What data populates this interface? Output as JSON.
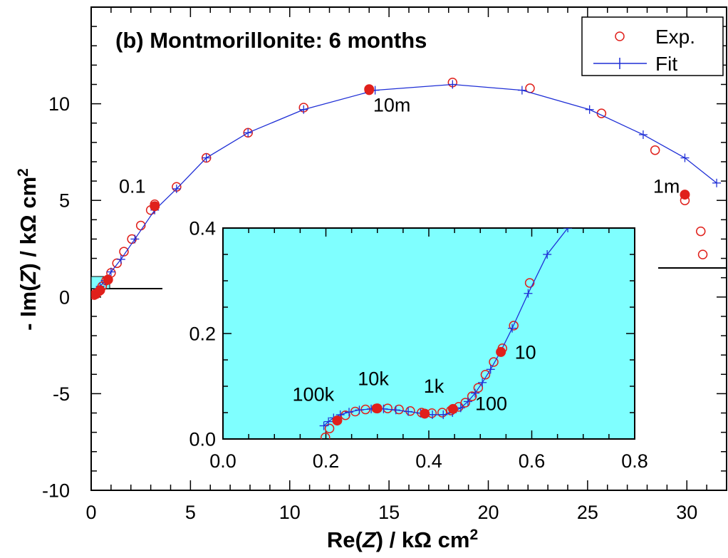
{
  "chart_data": [
    {
      "id": "main",
      "type": "scatter",
      "title": "(b) Montmorillonite: 6 months",
      "xlabel_prefix": "Re(",
      "xlabel_var": "Z",
      "xlabel_suffix": ") / kΩ cm",
      "xlabel_sup": "2",
      "ylabel_prefix": "- Im(",
      "ylabel_var": "Z",
      "ylabel_suffix": ") / kΩ cm",
      "ylabel_sup": "2",
      "xlim": [
        0,
        32
      ],
      "ylim": [
        -10,
        15
      ],
      "xticks": [
        "0",
        "5",
        "10",
        "15",
        "20",
        "25",
        "30"
      ],
      "xtick_values": [
        0,
        5,
        10,
        15,
        20,
        25,
        30
      ],
      "ytick_labels": [
        "-10",
        "-5",
        "0",
        "5",
        "10"
      ],
      "ytick_values": [
        -10,
        -5,
        0,
        5,
        10
      ],
      "legend": {
        "position": "top-right",
        "entries": [
          "Exp.",
          "Fit"
        ]
      },
      "series": [
        {
          "name": "Exp.",
          "marker": "open-circle",
          "color": "#e0201b",
          "x": [
            0.15,
            0.25,
            0.4,
            0.55,
            0.75,
            1.0,
            1.3,
            1.65,
            2.05,
            2.5,
            3.0,
            3.2,
            4.3,
            5.8,
            7.9,
            10.7,
            14.0,
            18.2,
            22.1,
            25.7,
            28.4,
            29.9,
            30.7,
            30.8
          ],
          "y": [
            0.1,
            0.15,
            0.3,
            0.55,
            0.85,
            1.25,
            1.75,
            2.35,
            3.0,
            3.7,
            4.5,
            4.8,
            5.7,
            7.2,
            8.5,
            9.8,
            10.7,
            11.1,
            10.8,
            9.5,
            7.6,
            5.0,
            3.4,
            2.2
          ]
        },
        {
          "name": "Fit",
          "marker": "plus",
          "color": "#1f2fd6",
          "x": [
            0.15,
            0.3,
            0.45,
            0.7,
            1.0,
            1.5,
            2.2,
            3.2,
            4.3,
            5.8,
            7.9,
            10.7,
            14.3,
            18.2,
            21.7,
            25.1,
            27.8,
            29.9,
            31.5
          ],
          "y": [
            0.2,
            0.35,
            0.55,
            0.85,
            1.3,
            1.95,
            3.0,
            4.5,
            5.6,
            7.2,
            8.5,
            9.7,
            10.7,
            11.0,
            10.7,
            9.7,
            8.4,
            7.2,
            5.9
          ]
        },
        {
          "name": "",
          "marker": "filled-circle",
          "color": "#e0201b",
          "x": [
            0.2,
            0.45,
            0.85,
            3.2,
            14.0,
            29.9
          ],
          "y": [
            0.15,
            0.35,
            0.9,
            4.7,
            10.75,
            5.3
          ]
        }
      ],
      "annotations": [
        {
          "text": "0.1",
          "x": 1.4,
          "y": 5.4
        },
        {
          "text": "10m",
          "x": 14.2,
          "y": 9.6
        },
        {
          "text": "1m",
          "x": 28.3,
          "y": 5.4
        }
      ]
    },
    {
      "id": "inset",
      "type": "scatter",
      "background": "#7fffff",
      "xlim": [
        0,
        0.8
      ],
      "ylim": [
        0,
        0.4
      ],
      "xticks": [
        "0.0",
        "0.2",
        "0.4",
        "0.6",
        "0.8"
      ],
      "xtick_values": [
        0,
        0.2,
        0.4,
        0.6,
        0.8
      ],
      "ytick_labels": [
        "0.0",
        "0.2",
        "0.4"
      ],
      "ytick_values": [
        0,
        0.2,
        0.4
      ],
      "series": [
        {
          "name": "Exp.",
          "marker": "open-circle",
          "color": "#e0201b",
          "x": [
            0.199,
            0.207,
            0.222,
            0.238,
            0.257,
            0.277,
            0.298,
            0.32,
            0.342,
            0.364,
            0.386,
            0.406,
            0.426,
            0.443,
            0.458,
            0.471,
            0.484,
            0.496,
            0.51,
            0.526,
            0.543,
            0.565,
            0.596
          ],
          "y": [
            0.003,
            0.02,
            0.035,
            0.045,
            0.052,
            0.056,
            0.058,
            0.058,
            0.056,
            0.053,
            0.05,
            0.049,
            0.05,
            0.054,
            0.061,
            0.069,
            0.081,
            0.097,
            0.122,
            0.146,
            0.172,
            0.215,
            0.296
          ]
        },
        {
          "name": "Fit",
          "marker": "plus",
          "color": "#1f2fd6",
          "x": [
            0.196,
            0.205,
            0.215,
            0.228,
            0.245,
            0.265,
            0.288,
            0.312,
            0.336,
            0.36,
            0.384,
            0.407,
            0.428,
            0.446,
            0.462,
            0.476,
            0.49,
            0.504,
            0.52,
            0.539,
            0.562,
            0.593,
            0.63,
            0.67
          ],
          "y": [
            0.025,
            0.033,
            0.04,
            0.046,
            0.051,
            0.055,
            0.057,
            0.057,
            0.055,
            0.052,
            0.049,
            0.046,
            0.046,
            0.05,
            0.059,
            0.071,
            0.087,
            0.107,
            0.132,
            0.165,
            0.21,
            0.276,
            0.35,
            0.4
          ]
        },
        {
          "name": "",
          "marker": "filled-circle",
          "color": "#e0201b",
          "x": [
            0.222,
            0.3,
            0.392,
            0.447,
            0.54
          ],
          "y": [
            0.035,
            0.058,
            0.048,
            0.057,
            0.165
          ]
        }
      ],
      "annotations": [
        {
          "text": "100k",
          "x": 0.135,
          "y": 0.072
        },
        {
          "text": "10k",
          "x": 0.262,
          "y": 0.102
        },
        {
          "text": "1k",
          "x": 0.39,
          "y": 0.088
        },
        {
          "text": "100",
          "x": 0.49,
          "y": 0.055
        },
        {
          "text": "10",
          "x": 0.567,
          "y": 0.152
        }
      ]
    }
  ]
}
